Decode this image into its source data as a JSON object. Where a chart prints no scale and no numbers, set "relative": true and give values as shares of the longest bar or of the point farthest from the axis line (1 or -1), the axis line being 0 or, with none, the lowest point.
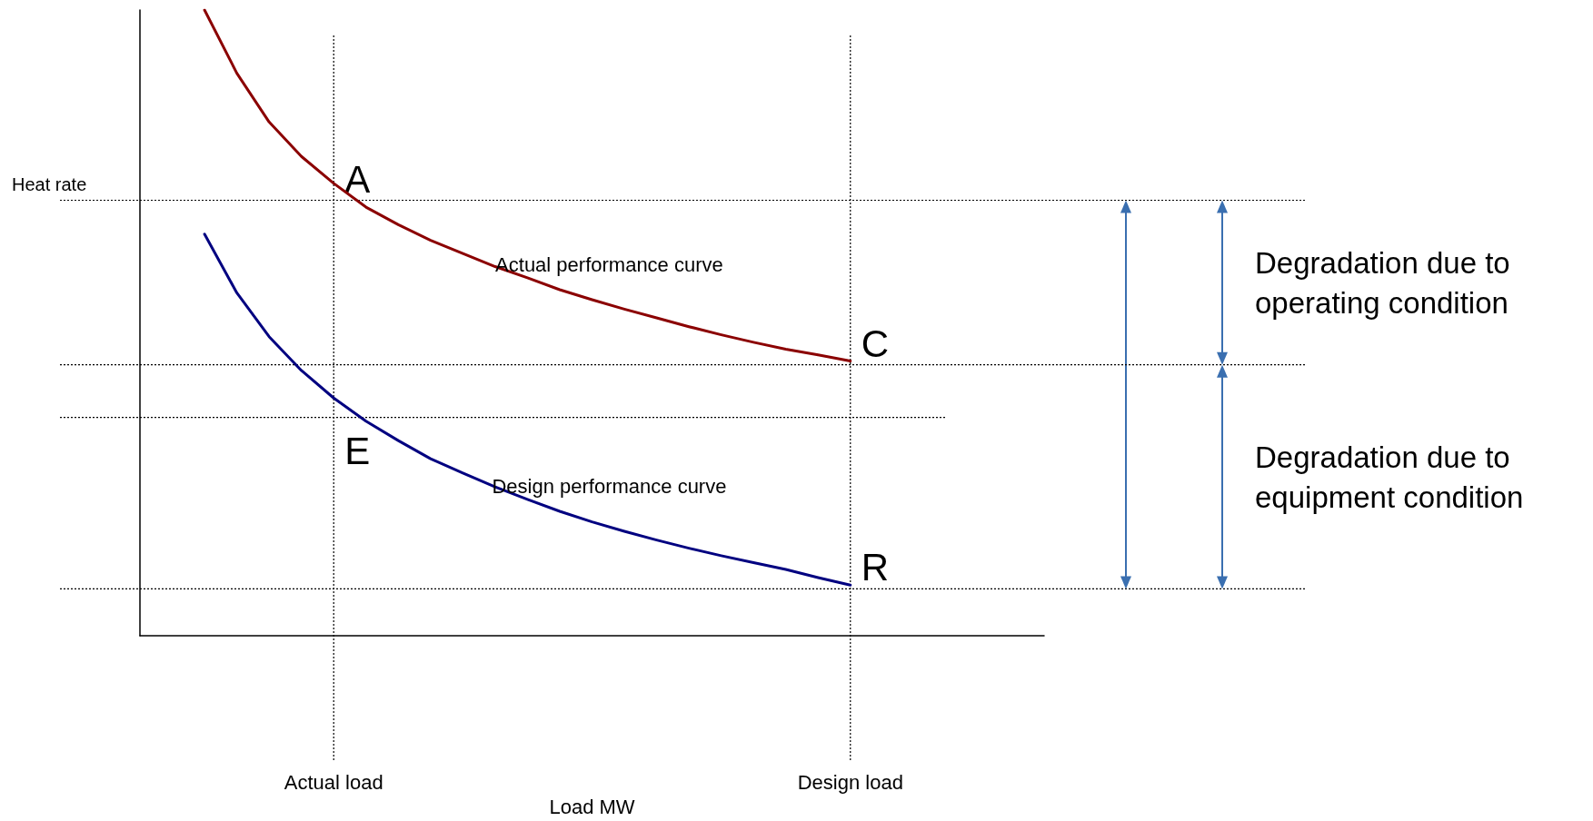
{
  "chart_data": {
    "type": "line",
    "relative": true,
    "xlabel": "Load MW",
    "ylabel": "Heat rate",
    "categories": [
      null,
      null,
      null,
      null,
      null,
      null,
      "Actual load",
      null,
      null,
      null,
      null,
      null,
      null,
      null,
      null,
      null,
      null,
      null,
      null,
      null,
      null,
      null,
      "Design load",
      null,
      null,
      null,
      null,
      null,
      null
    ],
    "series": [
      {
        "name": "Actual performance curve",
        "color": "#8b0000",
        "values": [
          null,
          null,
          1.0,
          0.899,
          0.821,
          0.766,
          0.723,
          0.685,
          0.657,
          0.632,
          0.611,
          0.59,
          0.572,
          0.553,
          0.537,
          0.522,
          0.508,
          0.494,
          0.481,
          0.469,
          0.458,
          0.449,
          0.439,
          null,
          null,
          null,
          null,
          null,
          null
        ]
      },
      {
        "name": "Design performance curve",
        "color": "#000080",
        "values": [
          null,
          null,
          0.642,
          0.548,
          0.478,
          0.424,
          0.38,
          0.343,
          0.312,
          0.283,
          0.26,
          0.238,
          0.218,
          0.199,
          0.182,
          0.167,
          0.153,
          0.14,
          0.128,
          0.117,
          0.106,
          0.093,
          0.081,
          null,
          null,
          null,
          null,
          null,
          null
        ]
      }
    ],
    "ref_lines": [
      {
        "axis": "x",
        "value": "Actual load",
        "line_style": "dotted"
      },
      {
        "axis": "x",
        "value": "Design load",
        "line_style": "dotted"
      },
      {
        "axis": "y",
        "value": 0.696,
        "line_style": "dotted"
      },
      {
        "axis": "y",
        "value": 0.433,
        "line_style": "dotted"
      },
      {
        "axis": "y",
        "value": 0.349,
        "line_style": "dotted"
      },
      {
        "axis": "y",
        "value": 0.075,
        "line_style": "dotted"
      }
    ],
    "annotations": [
      "Degradation due to operating condition",
      "Degradation due to equipment condition",
      {
        "text": "A",
        "x": "Actual load",
        "y": 0.73
      },
      {
        "text": "C",
        "x": "Design load",
        "y": 0.466
      },
      {
        "text": "E",
        "x": "Actual load",
        "y": 0.296
      },
      {
        "text": "R",
        "x": "Design load",
        "y": 0.109
      }
    ]
  }
}
